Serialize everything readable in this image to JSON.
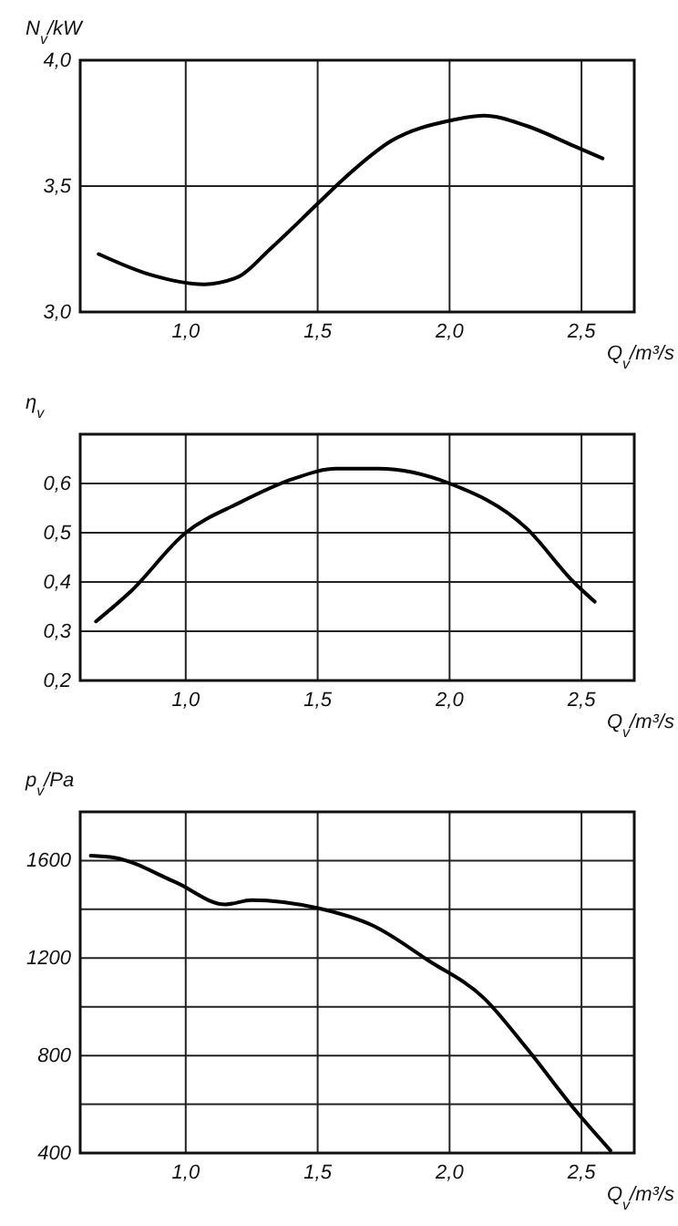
{
  "chart_data": [
    {
      "type": "line",
      "ylabel": "N$_{v}$/kW",
      "xlabel": "Q$_{v}$/m³/s",
      "grid": true,
      "marker": "none",
      "line_style": "solid",
      "xlim": [
        0.6,
        2.7
      ],
      "xticks": [
        {
          "value": 1.0,
          "label": "1,0"
        },
        {
          "value": 1.5,
          "label": "1,5"
        },
        {
          "value": 2.0,
          "label": "2,0"
        },
        {
          "value": 2.5,
          "label": "2,5"
        }
      ],
      "ylim": [
        3.0,
        4.0
      ],
      "yticks": [
        {
          "value": 3.0,
          "label": "3,0"
        },
        {
          "value": 3.5,
          "label": "3,5"
        },
        {
          "value": 4.0,
          "label": "4,0"
        }
      ],
      "series": [
        {
          "color": "#000000",
          "x": [
            0.67,
            0.86,
            1.07,
            1.2,
            1.32,
            1.5,
            1.6,
            1.78,
            2.0,
            2.13,
            2.29,
            2.47,
            2.58
          ],
          "values": [
            3.23,
            3.15,
            3.11,
            3.14,
            3.25,
            3.43,
            3.53,
            3.68,
            3.76,
            3.78,
            3.74,
            3.66,
            3.61
          ]
        }
      ]
    },
    {
      "type": "line",
      "ylabel": "η$_{v}$",
      "xlabel": "Q$_{v}$/m³/s",
      "grid": true,
      "marker": "none",
      "line_style": "solid",
      "xlim": [
        0.6,
        2.7
      ],
      "xticks": [
        {
          "value": 1.0,
          "label": "1,0"
        },
        {
          "value": 1.5,
          "label": "1,5"
        },
        {
          "value": 2.0,
          "label": "2,0"
        },
        {
          "value": 2.5,
          "label": "2,5"
        }
      ],
      "ylim": [
        0.2,
        0.7
      ],
      "yticks": [
        {
          "value": 0.2,
          "label": "0,2"
        },
        {
          "value": 0.3,
          "label": "0,3"
        },
        {
          "value": 0.4,
          "label": "0,4"
        },
        {
          "value": 0.5,
          "label": "0,5"
        },
        {
          "value": 0.6,
          "label": "0,6"
        }
      ],
      "series": [
        {
          "color": "#000000",
          "x": [
            0.66,
            0.79,
            1.0,
            1.2,
            1.41,
            1.57,
            1.73,
            2.0,
            2.29,
            2.47,
            2.55
          ],
          "values": [
            0.32,
            0.38,
            0.5,
            0.56,
            0.61,
            0.63,
            0.63,
            0.6,
            0.51,
            0.4,
            0.36
          ]
        }
      ]
    },
    {
      "type": "line",
      "ylabel": "p$_{v}$/Pa",
      "xlabel": "Q$_{v}$/m³/s",
      "grid": true,
      "marker": "none",
      "line_style": "solid",
      "xlim": [
        0.6,
        2.7
      ],
      "xticks": [
        {
          "value": 1.0,
          "label": "1,0"
        },
        {
          "value": 1.5,
          "label": "1,5"
        },
        {
          "value": 2.0,
          "label": "2,0"
        },
        {
          "value": 2.5,
          "label": "2,5"
        }
      ],
      "ylim": [
        400,
        1800
      ],
      "yticks": [
        400,
        {
          "value": 600,
          "label": null
        },
        800,
        {
          "value": 1000,
          "label": null
        },
        1200,
        {
          "value": 1400,
          "label": null
        },
        1600
      ],
      "series": [
        {
          "color": "#000000",
          "x": [
            0.64,
            0.73,
            0.96,
            1.15,
            1.25,
            1.5,
            1.71,
            1.92,
            2.13,
            2.29,
            2.48,
            2.61
          ],
          "values": [
            1620,
            1612,
            1512,
            1420,
            1438,
            1405,
            1333,
            1190,
            1036,
            833,
            571,
            410
          ]
        }
      ]
    }
  ]
}
